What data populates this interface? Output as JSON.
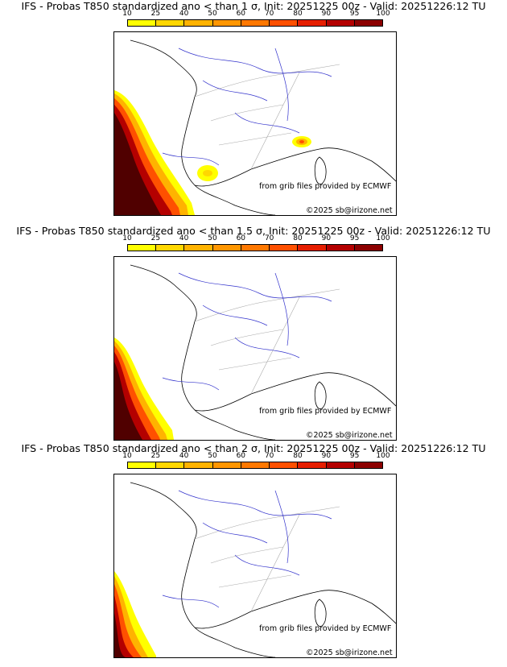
{
  "colorbar": {
    "ticks": [
      "10",
      "25",
      "40",
      "50",
      "60",
      "70",
      "80",
      "90",
      "95",
      "100"
    ],
    "colors": [
      "#ffff00",
      "#ffd700",
      "#ffb300",
      "#ff9600",
      "#ff7800",
      "#ff5000",
      "#e61e00",
      "#b40000",
      "#8c0000",
      "#500000"
    ]
  },
  "panels": [
    {
      "title": "IFS - Probas T850  standardized ano < than 1 σ, Init: 20251225 00z - Valid: 20251226:12 TU",
      "credit": "from grib files provided by ECMWF",
      "copyright": "©2025 sb@irizone.net"
    },
    {
      "title": "IFS - Probas T850  standardized ano < than 1.5 σ, Init: 20251225 00z - Valid: 20251226:12 TU",
      "credit": "from grib files provided by ECMWF",
      "copyright": "©2025 sb@irizone.net"
    },
    {
      "title": "IFS - Probas T850  standardized ano < than 2 σ, Init: 20251225 00z - Valid: 20251226:12 TU",
      "credit": "from grib files provided by ECMWF",
      "copyright": "©2025 sb@irizone.net"
    }
  ]
}
